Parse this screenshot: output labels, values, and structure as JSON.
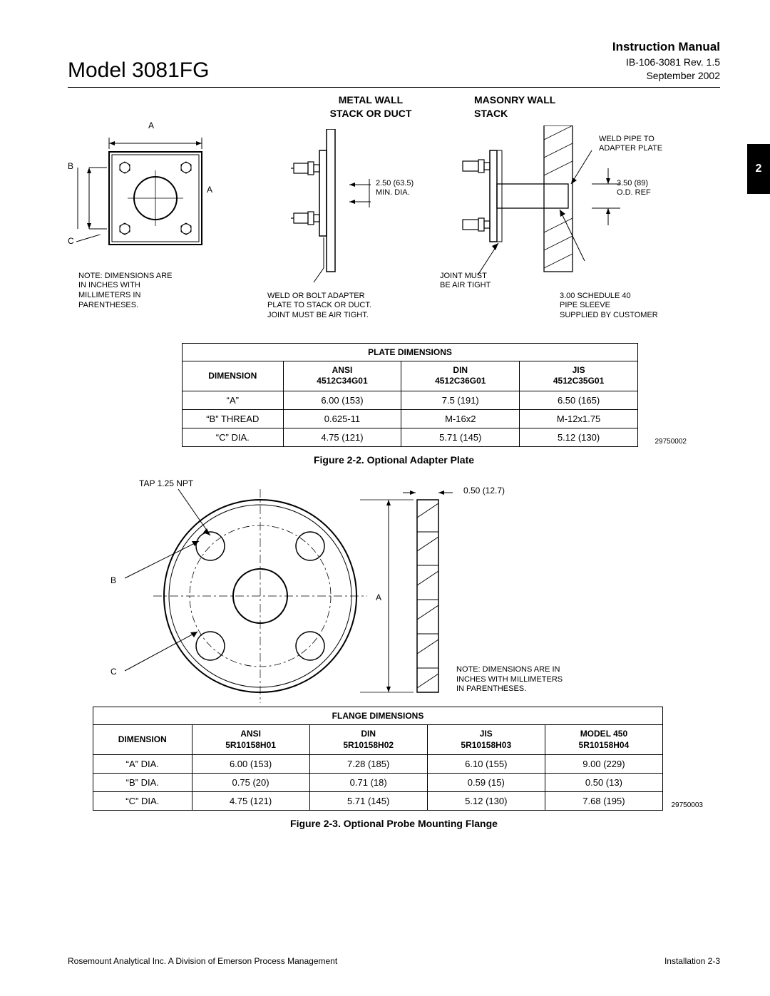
{
  "header": {
    "model": "Model 3081FG",
    "instr": "Instruction Manual",
    "rev": "IB-106-3081 Rev. 1.5",
    "date": "September 2002"
  },
  "section_tab": "2",
  "diag_headings": {
    "metal": "METAL  WALL\nSTACK  OR  DUCT",
    "masonry": "MASONRY   WALL\nSTACK"
  },
  "labels": {
    "dim_A": "A",
    "dim_B": "B",
    "dim_C": "C",
    "note_dims": "NOTE:  DIMENSIONS  ARE\nIN  INCHES  WITH\nMILLIMETERS  IN\nPARENTHESES.",
    "min_dia": "2.50 (63.5)\nMIN.  DIA.",
    "weld_bolt": "WELD  OR  BOLT  ADAPTER\nPLATE  TO  STACK  OR  DUCT.\nJOINT  MUST  BE  AIR  TIGHT.",
    "joint_air": "JOINT  MUST\nBE  AIR  TIGHT",
    "weld_pipe": "WELD  PIPE  TO\nADAPTER  PLATE",
    "od_ref": "3.50 (89)\nO.D.  REF",
    "pipe_sleeve": "3.00  SCHEDULE  40\nPIPE  SLEEVE\nSUPPLIED  BY  CUSTOMER",
    "tap_npt": "TAP 1.25  NPT",
    "half_127": "0.50  (12.7)",
    "note_dims2": "NOTE:  DIMENSIONS  ARE  IN\nINCHES  WITH  MILLIMETERS\nIN  PARENTHESES."
  },
  "table1": {
    "title": "PLATE   DIMENSIONS",
    "headers": [
      "DIMENSION",
      "ANSI\n4512C34G01",
      "DIN\n4512C36G01",
      "JIS\n4512C35G01"
    ],
    "rows": [
      [
        "“A”",
        "6.00 (153)",
        "7.5 (191)",
        "6.50 (165)"
      ],
      [
        "“B”  THREAD",
        "0.625-11",
        "M-16x2",
        "M-12x1.75"
      ],
      [
        "“C”  DIA.",
        "4.75 (121)",
        "5.71 (145)",
        "5.12 (130)"
      ]
    ],
    "ref": "29750002"
  },
  "caption1": "Figure 2-2.  Optional Adapter Plate",
  "table2": {
    "title": "FLANGE   DIMENSIONS",
    "headers": [
      "DIMENSION",
      "ANSI\n5R10158H01",
      "DIN\n5R10158H02",
      "JIS\n5R10158H03",
      "MODEL 450\n5R10158H04"
    ],
    "rows": [
      [
        "“A”  DIA.",
        "6.00 (153)",
        "7.28 (185)",
        "6.10 (155)",
        "9.00 (229)"
      ],
      [
        "“B”  DIA.",
        "0.75 (20)",
        "0.71 (18)",
        "0.59 (15)",
        "0.50 (13)"
      ],
      [
        "“C”  DIA.",
        "4.75 (121)",
        "5.71 (145)",
        "5.12 (130)",
        "7.68 (195)"
      ]
    ],
    "ref": "29750003"
  },
  "caption2": "Figure 2-3.  Optional Probe Mounting Flange",
  "footer": {
    "left": "Rosemount Analytical Inc.    A Division of Emerson Process Management",
    "right": "Installation    2-3"
  }
}
